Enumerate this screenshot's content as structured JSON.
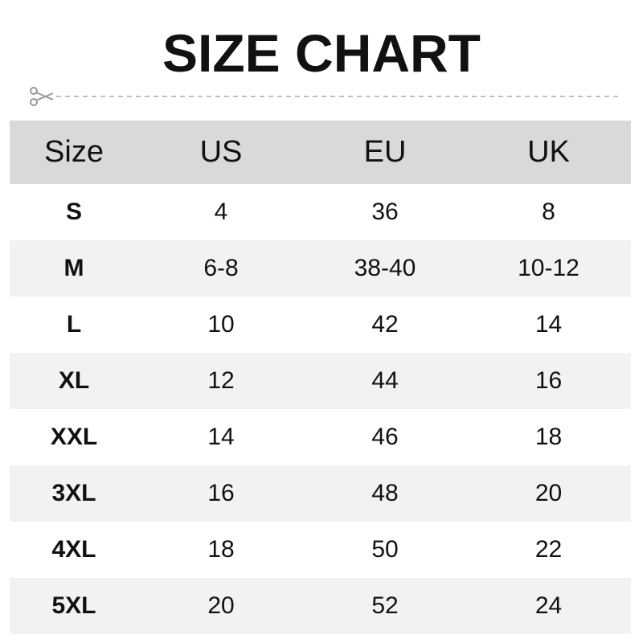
{
  "title": "SIZE CHART",
  "icons": {
    "cut": "scissors-icon"
  },
  "colors": {
    "header_bg": "#d9d9d9",
    "alt_row_bg": "#f2f2f2",
    "text": "#111111",
    "cutline": "#aaaaaa"
  },
  "chart_data": {
    "type": "table",
    "title": "SIZE CHART",
    "columns": [
      "Size",
      "US",
      "EU",
      "UK"
    ],
    "rows": [
      [
        "S",
        "4",
        "36",
        "8"
      ],
      [
        "M",
        "6-8",
        "38-40",
        "10-12"
      ],
      [
        "L",
        "10",
        "42",
        "14"
      ],
      [
        "XL",
        "12",
        "44",
        "16"
      ],
      [
        "XXL",
        "14",
        "46",
        "18"
      ],
      [
        "3XL",
        "16",
        "48",
        "20"
      ],
      [
        "4XL",
        "18",
        "50",
        "22"
      ],
      [
        "5XL",
        "20",
        "52",
        "24"
      ]
    ]
  }
}
